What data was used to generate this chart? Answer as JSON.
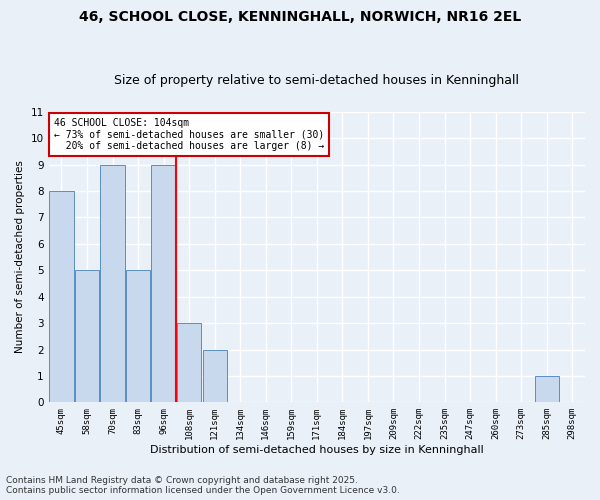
{
  "title": "46, SCHOOL CLOSE, KENNINGHALL, NORWICH, NR16 2EL",
  "subtitle": "Size of property relative to semi-detached houses in Kenninghall",
  "xlabel": "Distribution of semi-detached houses by size in Kenninghall",
  "ylabel": "Number of semi-detached properties",
  "categories": [
    "45sqm",
    "58sqm",
    "70sqm",
    "83sqm",
    "96sqm",
    "108sqm",
    "121sqm",
    "134sqm",
    "146sqm",
    "159sqm",
    "171sqm",
    "184sqm",
    "197sqm",
    "209sqm",
    "222sqm",
    "235sqm",
    "247sqm",
    "260sqm",
    "273sqm",
    "285sqm",
    "298sqm"
  ],
  "values": [
    8,
    5,
    9,
    5,
    9,
    3,
    2,
    0,
    0,
    0,
    0,
    0,
    0,
    0,
    0,
    0,
    0,
    0,
    0,
    1,
    0
  ],
  "bar_color": "#c9d9ed",
  "bar_edgecolor": "#5b8ec4",
  "red_line_x": 5,
  "annotation_text": "46 SCHOOL CLOSE: 104sqm\n← 73% of semi-detached houses are smaller (30)\n  20% of semi-detached houses are larger (8) →",
  "annotation_box_facecolor": "#ffffff",
  "annotation_box_edgecolor": "#cc0000",
  "ylim": [
    0,
    11
  ],
  "footer": "Contains HM Land Registry data © Crown copyright and database right 2025.\nContains public sector information licensed under the Open Government Licence v3.0.",
  "bg_color": "#eaf0f8",
  "plot_bg_color": "#eaf0f8",
  "grid_color": "#ffffff",
  "title_fontsize": 10,
  "subtitle_fontsize": 9,
  "footer_fontsize": 6.5
}
